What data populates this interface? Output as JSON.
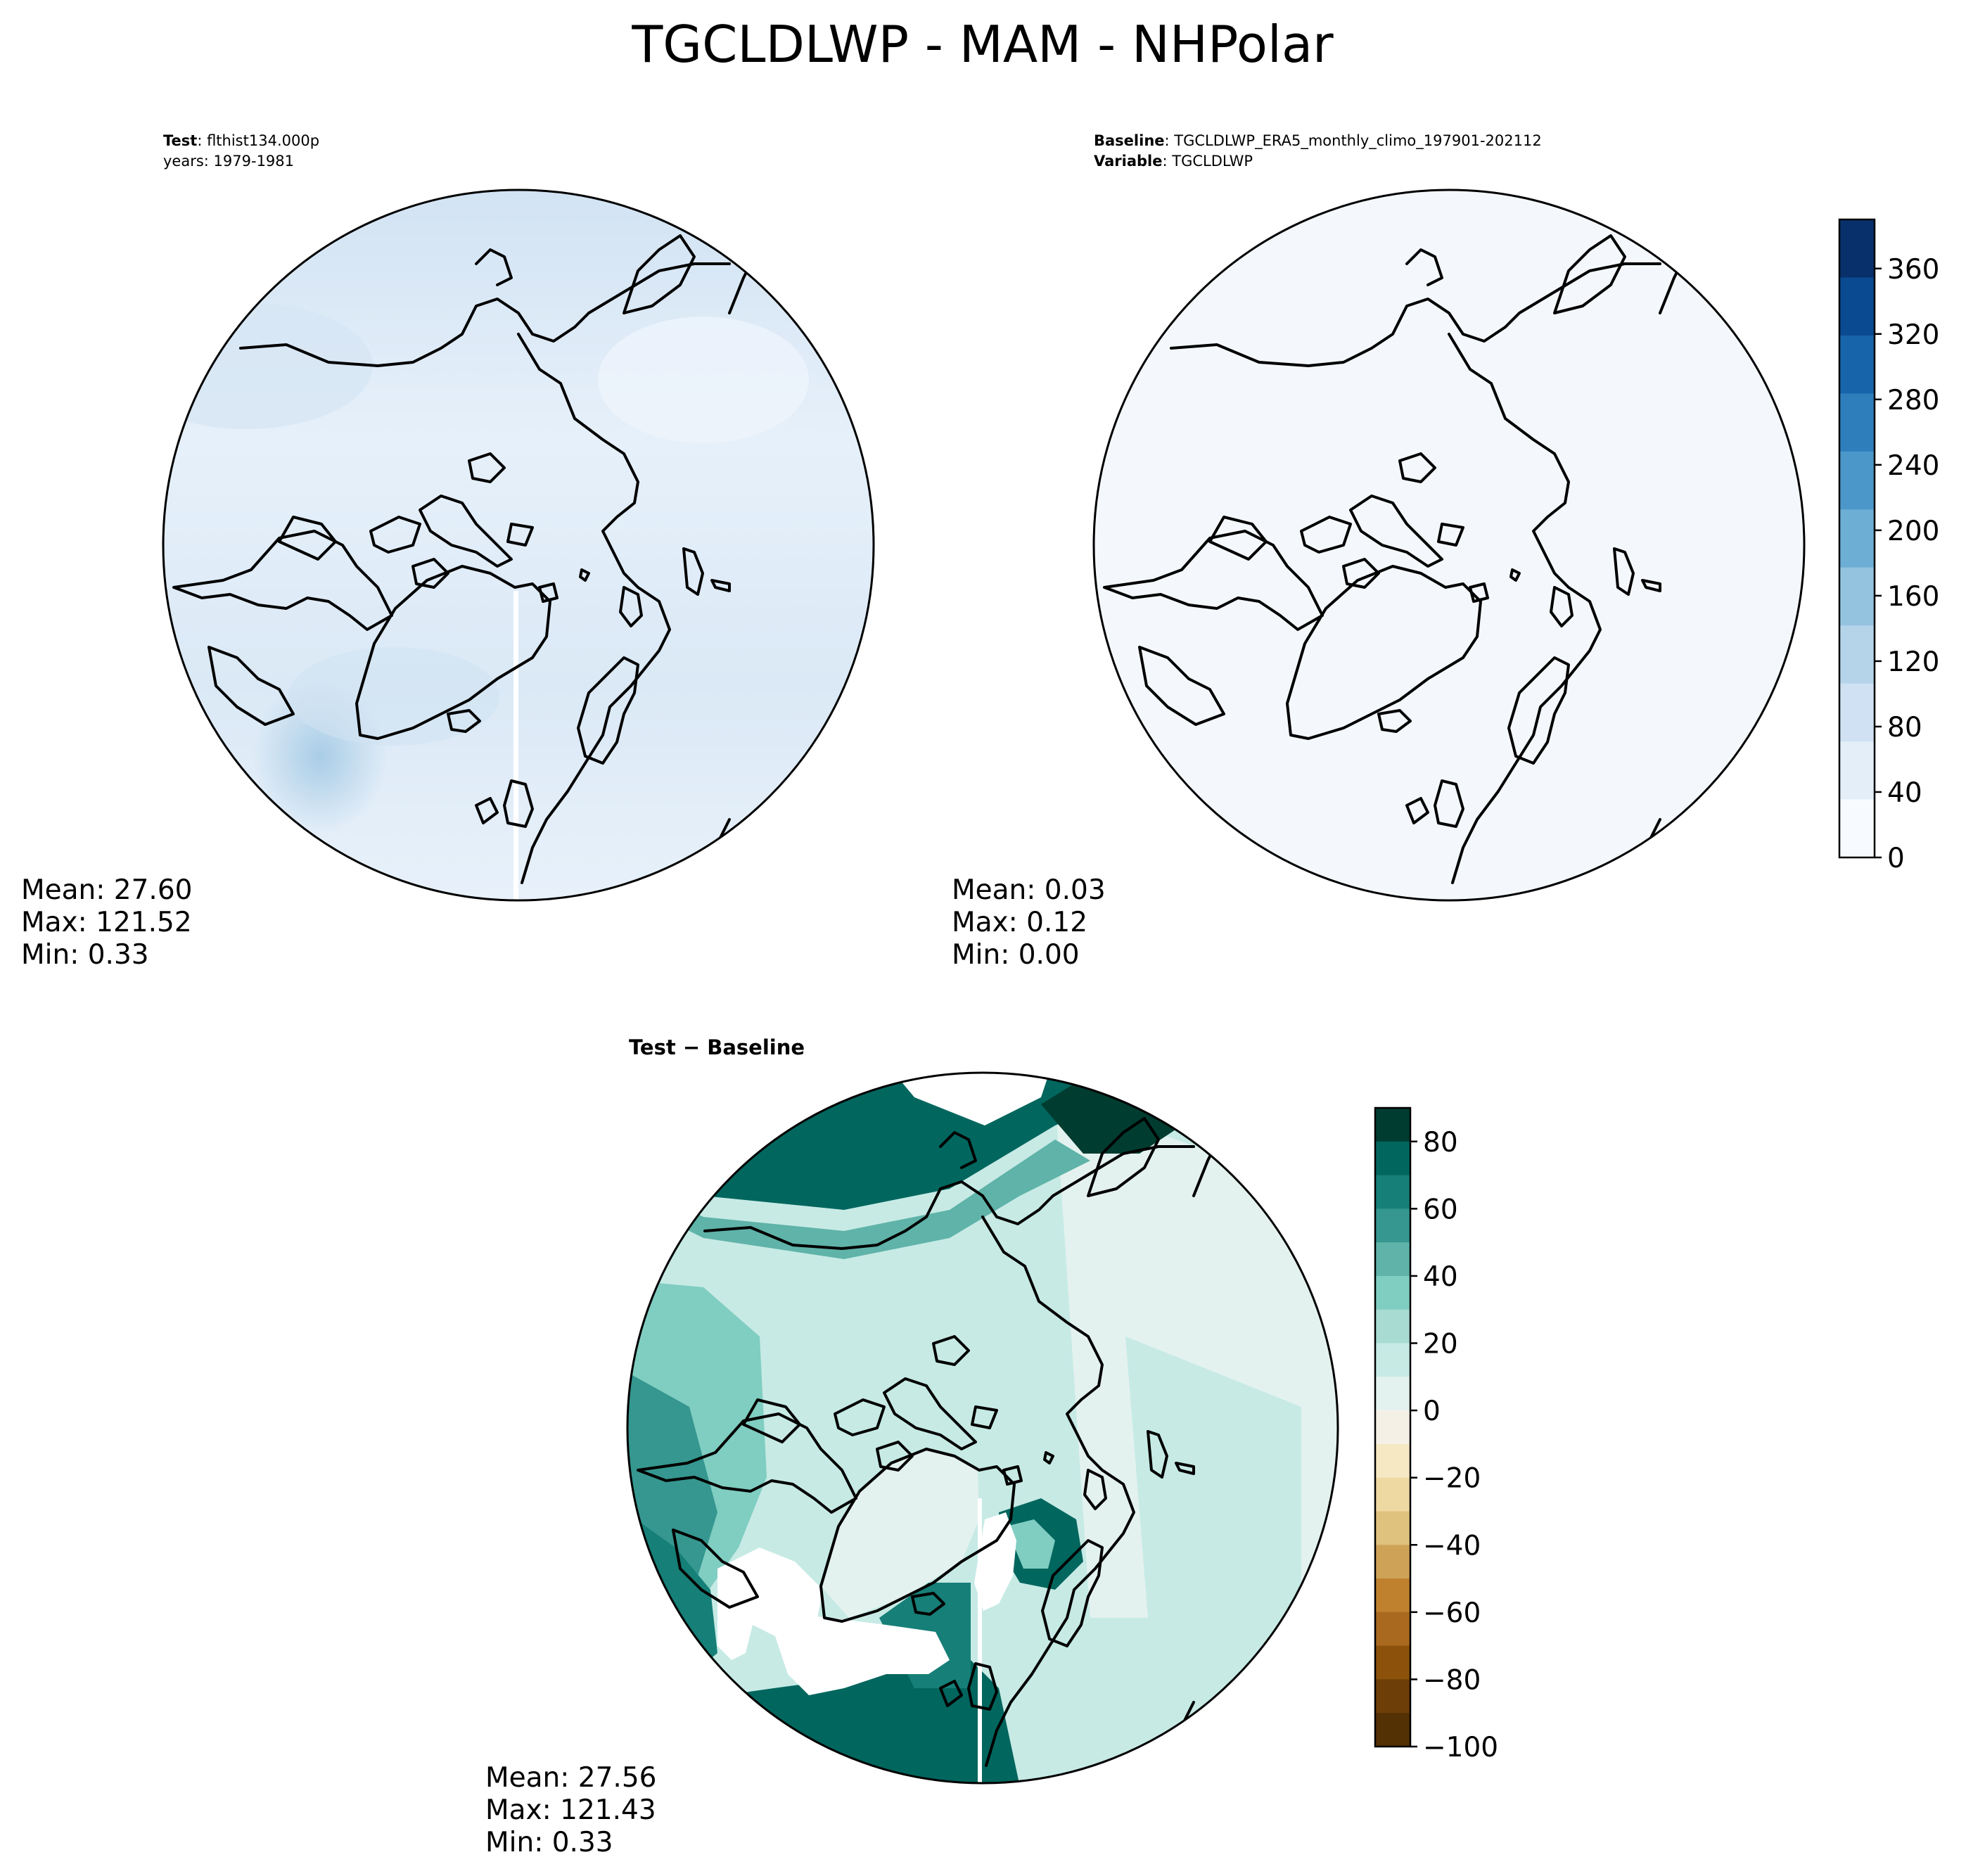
{
  "figure": {
    "title": "TGCLDLWP - MAM - NHPolar"
  },
  "chart_data": [
    {
      "type": "heatmap",
      "panel": "test",
      "header": {
        "line1_bold": "Test",
        "line1_rest": ": flthist134.000p",
        "line2": "years: 1979-1981"
      },
      "stats": {
        "mean": "Mean: 27.60",
        "max": "Max: 121.52",
        "min": "Min:  0.33"
      },
      "colormap": "Blues"
    },
    {
      "type": "heatmap",
      "panel": "baseline",
      "header": {
        "line1_bold": "Baseline",
        "line1_rest": ": TGCLDLWP_ERA5_monthly_climo_197901-202112",
        "line2_bold": "Variable",
        "line2_rest": ": TGCLDLWP"
      },
      "stats": {
        "mean": "Mean:  0.03",
        "max": "Max:  0.12",
        "min": "Min:  0.00"
      },
      "colormap": "Blues",
      "colorbar": {
        "range": [
          0,
          390
        ],
        "ticks": [
          0,
          40,
          80,
          120,
          160,
          200,
          240,
          280,
          320,
          360
        ],
        "tick_labels": [
          "0",
          "40",
          "80",
          "120",
          "160",
          "200",
          "240",
          "280",
          "320",
          "360"
        ],
        "colors": [
          "#f7fbff",
          "#e3eef9",
          "#cfe1f2",
          "#b5d4e9",
          "#93c3df",
          "#6daed5",
          "#4b97c9",
          "#2f7ebc",
          "#1864aa",
          "#0a4a90",
          "#08306b"
        ]
      }
    },
    {
      "type": "heatmap",
      "panel": "difference",
      "header": {
        "title": "Test − Baseline"
      },
      "stats": {
        "mean": "Mean: 27.56",
        "max": "Max: 121.43",
        "min": "Min:  0.33"
      },
      "colormap": "BrBG",
      "colorbar": {
        "range": [
          -100,
          90
        ],
        "ticks": [
          80,
          60,
          40,
          20,
          0,
          -20,
          -40,
          -60,
          -80,
          -100
        ],
        "tick_labels": [
          "80",
          "60",
          "40",
          "20",
          "0",
          "−20",
          "−40",
          "−60",
          "−80",
          "−100"
        ],
        "colors": [
          "#003c30",
          "#01665e",
          "#167f77",
          "#35978f",
          "#5fb3a9",
          "#80cdc1",
          "#a8dcd2",
          "#c7eae5",
          "#e4f2ef",
          "#f5f0e6",
          "#f6e8c3",
          "#efd9a3",
          "#dfc27d",
          "#cfa357",
          "#bf812d",
          "#a9691f",
          "#8c510a",
          "#6e3e08",
          "#543005"
        ]
      }
    }
  ]
}
